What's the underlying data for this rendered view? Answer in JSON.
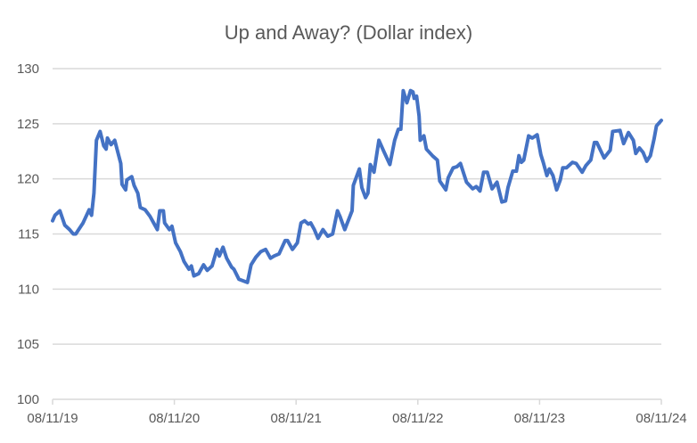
{
  "chart_data": {
    "type": "line",
    "title": "Up and Away? (Dollar index)",
    "xlabel": "",
    "ylabel": "",
    "x_unit": "years since 08/11/19",
    "xlim": [
      0,
      5
    ],
    "ylim": [
      100,
      130
    ],
    "y_ticks": [
      100,
      105,
      110,
      115,
      120,
      125,
      130
    ],
    "x_tick_labels": [
      "08/11/19",
      "08/11/20",
      "08/11/21",
      "08/11/22",
      "08/11/23",
      "08/11/24"
    ],
    "grid": true,
    "legend": "none",
    "line_color": "#4472C4",
    "series": [
      {
        "name": "Dollar index",
        "x": [
          0,
          0.02,
          0.06,
          0.1,
          0.14,
          0.17,
          0.19,
          0.25,
          0.3,
          0.32,
          0.34,
          0.36,
          0.39,
          0.42,
          0.44,
          0.45,
          0.48,
          0.51,
          0.56,
          0.57,
          0.6,
          0.61,
          0.65,
          0.67,
          0.7,
          0.72,
          0.76,
          0.8,
          0.83,
          0.86,
          0.88,
          0.91,
          0.92,
          0.96,
          0.98,
          1.01,
          1.05,
          1.08,
          1.12,
          1.14,
          1.16,
          1.2,
          1.24,
          1.27,
          1.31,
          1.35,
          1.37,
          1.4,
          1.43,
          1.47,
          1.49,
          1.53,
          1.6,
          1.63,
          1.67,
          1.71,
          1.75,
          1.79,
          1.82,
          1.86,
          1.91,
          1.93,
          1.97,
          2.01,
          2.04,
          2.07,
          2.1,
          2.12,
          2.15,
          2.18,
          2.22,
          2.26,
          2.3,
          2.34,
          2.36,
          2.4,
          2.46,
          2.47,
          2.52,
          2.54,
          2.57,
          2.59,
          2.61,
          2.64,
          2.68,
          2.72,
          2.77,
          2.81,
          2.84,
          2.86,
          2.88,
          2.91,
          2.94,
          2.96,
          2.97,
          2.99,
          3.01,
          3.02,
          3.05,
          3.07,
          3.12,
          3.16,
          3.18,
          3.23,
          3.25,
          3.29,
          3.32,
          3.35,
          3.4,
          3.45,
          3.48,
          3.51,
          3.54,
          3.57,
          3.61,
          3.65,
          3.69,
          3.72,
          3.74,
          3.78,
          3.81,
          3.83,
          3.85,
          3.87,
          3.91,
          3.94,
          3.98,
          4.01,
          4.03,
          4.06,
          4.08,
          4.11,
          4.14,
          4.17,
          4.19,
          4.22,
          4.27,
          4.3,
          4.35,
          4.38,
          4.42,
          4.45,
          4.47,
          4.53,
          4.58,
          4.6,
          4.66,
          4.69,
          4.73,
          4.77,
          4.79,
          4.82,
          4.85,
          4.88,
          4.91,
          4.94,
          4.96,
          5.0
        ],
        "y": [
          116.2,
          116.7,
          117.1,
          115.8,
          115.4,
          115.0,
          115.0,
          116.0,
          117.2,
          116.7,
          118.7,
          123.5,
          124.3,
          123.0,
          122.7,
          123.7,
          123.1,
          123.5,
          121.4,
          119.5,
          119.0,
          119.9,
          120.2,
          119.4,
          118.7,
          117.4,
          117.2,
          116.6,
          116.0,
          115.4,
          117.1,
          117.1,
          116.0,
          115.4,
          115.7,
          114.2,
          113.4,
          112.5,
          111.8,
          112.1,
          111.2,
          111.4,
          112.2,
          111.7,
          112.1,
          113.6,
          113.0,
          113.8,
          112.8,
          112.0,
          111.8,
          110.9,
          110.6,
          112.2,
          112.9,
          113.4,
          113.6,
          112.8,
          113.0,
          113.2,
          114.4,
          114.4,
          113.6,
          114.2,
          116.0,
          116.2,
          115.9,
          116.0,
          115.4,
          114.6,
          115.4,
          114.8,
          115.0,
          117.1,
          116.6,
          115.4,
          117.1,
          119.4,
          120.9,
          119.2,
          118.3,
          118.7,
          121.3,
          120.6,
          123.5,
          122.5,
          121.3,
          123.5,
          124.5,
          124.5,
          128.0,
          126.9,
          128.0,
          127.9,
          127.3,
          127.5,
          125.7,
          123.5,
          123.9,
          122.7,
          122.1,
          121.7,
          119.8,
          119.0,
          120.1,
          121.0,
          121.1,
          121.4,
          119.7,
          119.1,
          119.3,
          118.9,
          120.6,
          120.6,
          119.1,
          119.7,
          117.9,
          118.0,
          119.2,
          120.7,
          120.7,
          122.1,
          121.5,
          121.7,
          123.9,
          123.7,
          124.0,
          122.2,
          121.5,
          120.3,
          120.9,
          120.3,
          119.0,
          119.9,
          121.0,
          121.0,
          121.5,
          121.4,
          120.6,
          121.2,
          121.7,
          123.3,
          123.3,
          121.9,
          122.6,
          124.3,
          124.4,
          123.2,
          124.2,
          123.5,
          122.3,
          122.8,
          122.4,
          121.6,
          122.1,
          123.6,
          124.8,
          125.3
        ]
      }
    ]
  }
}
